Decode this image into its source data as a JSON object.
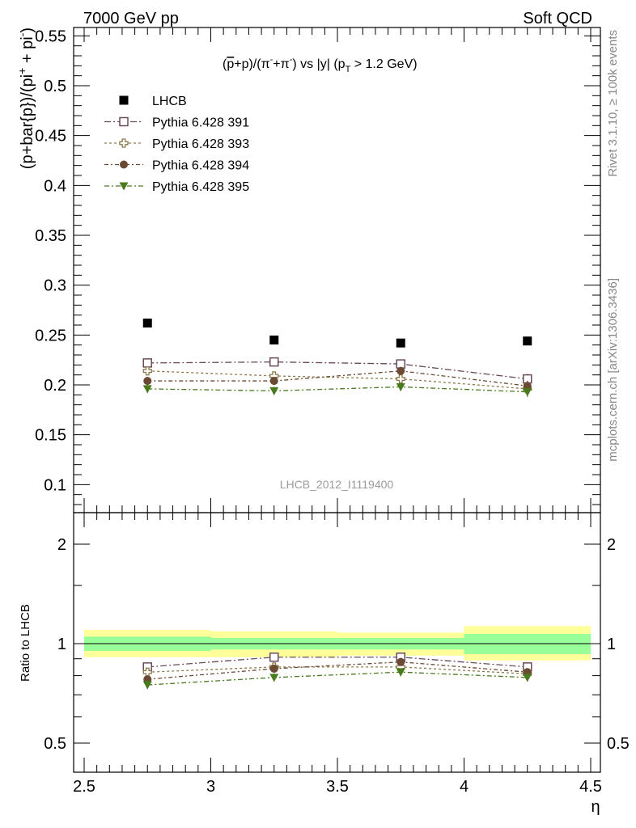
{
  "header": {
    "left": "7000 GeV pp",
    "right": "Soft QCD"
  },
  "side": {
    "top": "Rivet 3.1.10, ≥ 100k events",
    "bottom": "mcplots.cern.ch [arXiv:1306.3436]"
  },
  "colors": {
    "lhcb": "#000000",
    "p391": "#6b4a5e",
    "p393": "#8c7a4a",
    "p394": "#6b4a33",
    "p395": "#4a7a1e",
    "band_inner": "#99ff99",
    "band_outer": "#ffff99"
  },
  "chart_data": [
    {
      "type": "scatter",
      "panel": "main",
      "title": "(p̅+p)/(π⁻+π⁻) vs |y| (p_T > 1.2 GeV)",
      "title_parts": {
        "pre": "(",
        "pbar": "p",
        "mid1": "+p)/(π",
        "sup1": "-",
        "mid2": "+π",
        "sup2": "-",
        "mid3": ") vs |y| (p",
        "sub": "T",
        "post": " > 1.2 GeV)"
      },
      "ylabel": "(p+bar{p})/(pi⁺ + pi⁻)",
      "ylabel_parts": {
        "main": "(p+bar{p})/(pi",
        "sup1": "+",
        "mid": " + pi",
        "sup2": "-",
        "end": ")"
      },
      "watermark": "LHCB_2012_I1119400",
      "xlim": [
        2.5,
        4.5
      ],
      "ylim": [
        0.075,
        0.56
      ],
      "yticks": [
        "0.1",
        "0.15",
        "0.2",
        "0.25",
        "0.3",
        "0.35",
        "0.4",
        "0.45",
        "0.5",
        "0.55"
      ],
      "x": [
        2.75,
        3.25,
        3.75,
        4.25
      ],
      "series": [
        {
          "name": "LHCB",
          "marker": "square-filled",
          "values": [
            0.262,
            0.245,
            0.242,
            0.244
          ]
        },
        {
          "name": "Pythia 6.428 391",
          "marker": "square-open",
          "values": [
            0.222,
            0.223,
            0.221,
            0.206
          ],
          "errors": [
            0.004,
            0.004,
            0.004,
            0.005
          ]
        },
        {
          "name": "Pythia 6.428 393",
          "marker": "cross-open",
          "values": [
            0.214,
            0.209,
            0.206,
            0.196
          ],
          "errors": [
            0.004,
            0.004,
            0.004,
            0.005
          ]
        },
        {
          "name": "Pythia 6.428 394",
          "marker": "circle-filled",
          "values": [
            0.204,
            0.204,
            0.214,
            0.199
          ],
          "errors": [
            0.004,
            0.004,
            0.004,
            0.005
          ]
        },
        {
          "name": "Pythia 6.428 395",
          "marker": "triangle-down-filled",
          "values": [
            0.196,
            0.194,
            0.198,
            0.193
          ],
          "errors": [
            0.004,
            0.004,
            0.004,
            0.005
          ]
        }
      ]
    },
    {
      "type": "scatter",
      "panel": "ratio",
      "ylabel": "Ratio to LHCB",
      "xlabel": "η",
      "scale": "log",
      "xlim": [
        2.5,
        4.5
      ],
      "ylim": [
        0.4,
        2.4
      ],
      "xticks": [
        "2.5",
        "3",
        "3.5",
        "4",
        "4.5"
      ],
      "yticks": [
        "0.5",
        "1",
        "2"
      ],
      "x": [
        2.75,
        3.25,
        3.75,
        4.25
      ],
      "bins": [
        [
          2.5,
          3.0
        ],
        [
          3.0,
          3.5
        ],
        [
          3.5,
          4.0
        ],
        [
          4.0,
          4.5
        ]
      ],
      "band_inner": [
        [
          0.95,
          1.05
        ],
        [
          0.96,
          1.04
        ],
        [
          0.96,
          1.04
        ],
        [
          0.93,
          1.07
        ]
      ],
      "band_outer": [
        [
          0.91,
          1.1
        ],
        [
          0.91,
          1.09
        ],
        [
          0.92,
          1.08
        ],
        [
          0.89,
          1.13
        ]
      ],
      "series": [
        {
          "name": "Pythia 6.428 391",
          "values": [
            0.85,
            0.91,
            0.91,
            0.85
          ]
        },
        {
          "name": "Pythia 6.428 393",
          "values": [
            0.82,
            0.85,
            0.85,
            0.81
          ]
        },
        {
          "name": "Pythia 6.428 394",
          "values": [
            0.78,
            0.84,
            0.88,
            0.82
          ]
        },
        {
          "name": "Pythia 6.428 395",
          "values": [
            0.75,
            0.79,
            0.82,
            0.79
          ]
        }
      ]
    }
  ]
}
